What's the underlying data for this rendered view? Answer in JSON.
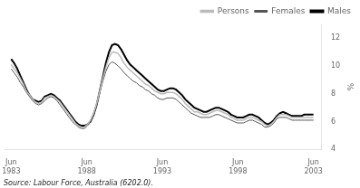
{
  "chart_data": {
    "type": "line",
    "ylabel": "%",
    "annotations": [
      "Source: Labour Force, Australia (6202.0)."
    ],
    "x": [
      1983.5,
      1983.702,
      1983.904,
      1984.1061,
      1984.3081,
      1984.5101,
      1984.7121,
      1984.9141,
      1985.1162,
      1985.3182,
      1985.5202,
      1985.7222,
      1985.9242,
      1986.1263,
      1986.3283,
      1986.5303,
      1986.7323,
      1986.9343,
      1987.1364,
      1987.3384,
      1987.5404,
      1987.7424,
      1987.9444,
      1988.1465,
      1988.3485,
      1988.5505,
      1988.7525,
      1988.9545,
      1989.1566,
      1989.3586,
      1989.5606,
      1989.7626,
      1989.9646,
      1990.1667,
      1990.3687,
      1990.5707,
      1990.7727,
      1990.9747,
      1991.1768,
      1991.3788,
      1991.5808,
      1991.7828,
      1991.9848,
      1992.1869,
      1992.3889,
      1992.5909,
      1992.7929,
      1992.9949,
      1993.197,
      1993.399,
      1993.601,
      1993.803,
      1994.0051,
      1994.2071,
      1994.4091,
      1994.6111,
      1994.8131,
      1995.0152,
      1995.2172,
      1995.4192,
      1995.6212,
      1995.8232,
      1996.0253,
      1996.2273,
      1996.4293,
      1996.6313,
      1996.8333,
      1997.0354,
      1997.2374,
      1997.4394,
      1997.6414,
      1997.8434,
      1998.0455,
      1998.2475,
      1998.4495,
      1998.6515,
      1998.8535,
      1999.0556,
      1999.2576,
      1999.4596,
      1999.6616,
      1999.8636,
      2000.0657,
      2000.2677,
      2000.4697,
      2000.6717,
      2000.8737,
      2001.0758,
      2001.2778,
      2001.4798,
      2001.6818,
      2001.8838,
      2002.0859,
      2002.2879,
      2002.4899,
      2002.6919,
      2002.8939,
      2003.096,
      2003.298,
      2003.5
    ],
    "xlim": [
      1983.0,
      2004.0
    ],
    "xticks": [
      {
        "value": 1983.5,
        "label": "Jun\n1983"
      },
      {
        "value": 1988.5,
        "label": "Jun\n1988"
      },
      {
        "value": 1993.5,
        "label": "Jun\n1993"
      },
      {
        "value": 1998.5,
        "label": "Jun\n1998"
      },
      {
        "value": 2003.5,
        "label": "Jun\n2003"
      }
    ],
    "ylim": [
      4,
      13
    ],
    "yticks": [
      4,
      6,
      8,
      10,
      12
    ],
    "grid": false,
    "legend": "upper right",
    "series": [
      {
        "name": "Persons",
        "color": "#bbbbbb",
        "values": [
          10.1,
          9.8,
          9.5,
          9.1,
          8.7,
          8.2,
          7.9,
          7.6,
          7.4,
          7.3,
          7.4,
          7.7,
          7.8,
          7.9,
          7.8,
          7.6,
          7.4,
          7.1,
          6.8,
          6.5,
          6.2,
          5.9,
          5.7,
          5.6,
          5.6,
          5.8,
          6.1,
          6.6,
          7.3,
          8.2,
          9.1,
          9.9,
          10.6,
          11.0,
          11.0,
          10.9,
          10.6,
          10.2,
          9.9,
          9.7,
          9.5,
          9.3,
          9.1,
          8.9,
          8.7,
          8.6,
          8.4,
          8.2,
          8.1,
          8.0,
          8.0,
          8.1,
          8.1,
          8.1,
          8.0,
          7.8,
          7.6,
          7.3,
          7.1,
          6.9,
          6.7,
          6.7,
          6.6,
          6.5,
          6.5,
          6.6,
          6.7,
          6.8,
          6.8,
          6.7,
          6.6,
          6.5,
          6.3,
          6.2,
          6.1,
          6.1,
          6.1,
          6.2,
          6.3,
          6.3,
          6.2,
          6.1,
          6.0,
          5.8,
          5.7,
          5.8,
          6.0,
          6.3,
          6.5,
          6.5,
          6.5,
          6.4,
          6.3,
          6.3,
          6.3,
          6.3,
          6.3,
          6.3,
          6.3,
          6.3
        ]
      },
      {
        "name": "Females",
        "color": "#555555",
        "values": [
          9.8,
          9.5,
          9.2,
          8.8,
          8.5,
          8.1,
          7.8,
          7.5,
          7.3,
          7.2,
          7.3,
          7.5,
          7.7,
          7.8,
          7.7,
          7.5,
          7.2,
          6.9,
          6.6,
          6.3,
          6.0,
          5.8,
          5.6,
          5.5,
          5.5,
          5.7,
          6.0,
          6.5,
          7.2,
          8.1,
          8.9,
          9.6,
          10.1,
          10.3,
          10.2,
          10.0,
          9.8,
          9.5,
          9.3,
          9.1,
          8.9,
          8.8,
          8.6,
          8.5,
          8.3,
          8.2,
          8.0,
          7.9,
          7.7,
          7.6,
          7.6,
          7.7,
          7.7,
          7.7,
          7.6,
          7.4,
          7.2,
          7.0,
          6.8,
          6.6,
          6.5,
          6.4,
          6.3,
          6.3,
          6.3,
          6.3,
          6.4,
          6.5,
          6.5,
          6.4,
          6.3,
          6.2,
          6.1,
          6.0,
          5.9,
          5.9,
          5.9,
          6.0,
          6.1,
          6.1,
          6.0,
          5.9,
          5.8,
          5.6,
          5.6,
          5.7,
          5.9,
          6.2,
          6.3,
          6.3,
          6.3,
          6.2,
          6.1,
          6.1,
          6.1,
          6.1,
          6.1,
          6.1,
          6.1,
          6.1
        ]
      },
      {
        "name": "Males",
        "color": "#000000",
        "values": [
          10.5,
          10.2,
          9.8,
          9.3,
          8.8,
          8.3,
          7.9,
          7.6,
          7.5,
          7.4,
          7.5,
          7.8,
          7.9,
          8.0,
          7.9,
          7.7,
          7.5,
          7.2,
          6.9,
          6.6,
          6.3,
          6.0,
          5.8,
          5.7,
          5.7,
          5.8,
          6.0,
          6.5,
          7.2,
          8.2,
          9.2,
          10.2,
          11.0,
          11.5,
          11.6,
          11.5,
          11.2,
          10.8,
          10.4,
          10.1,
          9.9,
          9.7,
          9.5,
          9.3,
          9.1,
          8.9,
          8.7,
          8.5,
          8.3,
          8.2,
          8.2,
          8.3,
          8.4,
          8.4,
          8.3,
          8.1,
          7.9,
          7.6,
          7.4,
          7.2,
          7.0,
          6.9,
          6.8,
          6.7,
          6.7,
          6.8,
          6.9,
          7.0,
          7.0,
          6.9,
          6.8,
          6.7,
          6.5,
          6.4,
          6.3,
          6.3,
          6.3,
          6.4,
          6.5,
          6.5,
          6.4,
          6.3,
          6.1,
          5.9,
          5.8,
          5.9,
          6.1,
          6.4,
          6.6,
          6.7,
          6.6,
          6.5,
          6.4,
          6.4,
          6.4,
          6.4,
          6.5,
          6.5,
          6.5,
          6.5
        ]
      }
    ]
  }
}
